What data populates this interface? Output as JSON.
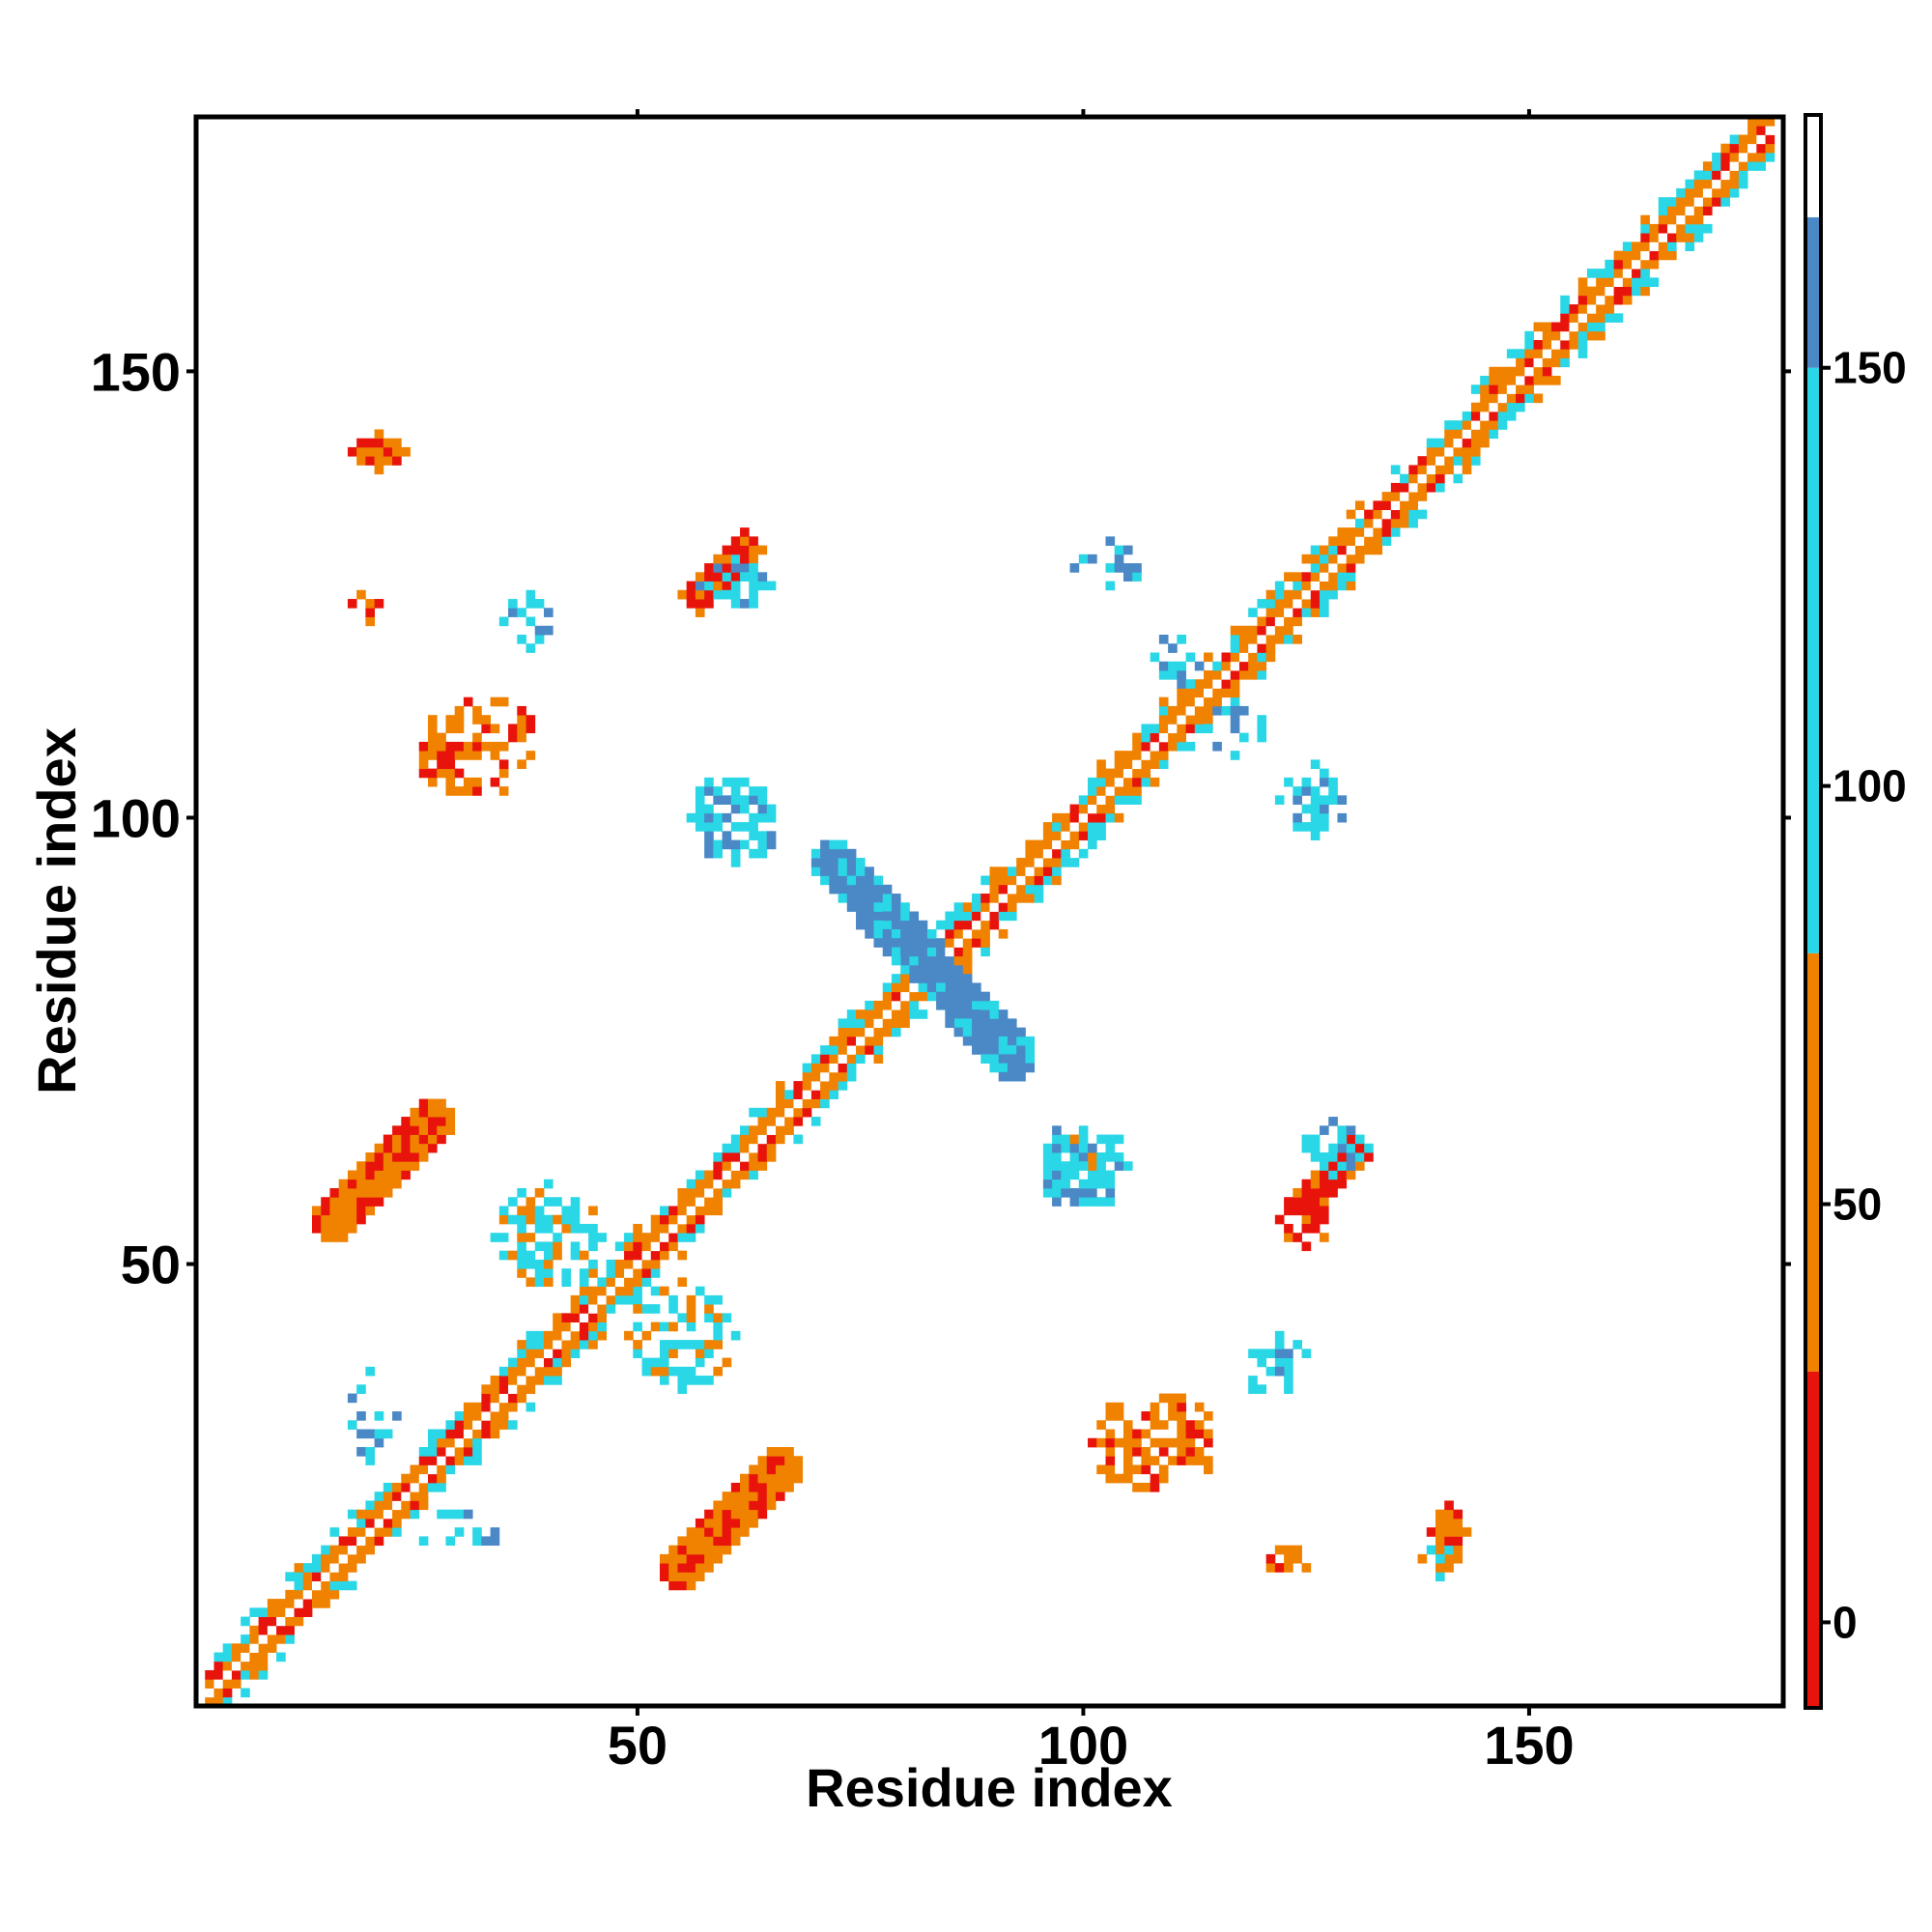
{
  "chart_data": {
    "type": "heatmap",
    "title": "",
    "xlabel": "Residue index",
    "ylabel": "Residue index",
    "xlim": [
      1,
      178
    ],
    "ylim": [
      1,
      178
    ],
    "x_ticks": [
      "50",
      "100",
      "150"
    ],
    "y_ticks": [
      "50",
      "100",
      "150"
    ],
    "grid": false,
    "colorbar": {
      "ticks": [
        "0",
        "50",
        "100",
        "150"
      ],
      "range": [
        -10,
        180
      ],
      "bands": [
        {
          "from": -10,
          "to": 30,
          "color": "#e8140c"
        },
        {
          "from": 30,
          "to": 80,
          "color": "#f08200"
        },
        {
          "from": 80,
          "to": 150,
          "color": "#2ad7e6"
        },
        {
          "from": 150,
          "to": 168,
          "color": "#4a88c6"
        },
        {
          "from": 168,
          "to": 180,
          "color": "#ffffff"
        }
      ]
    },
    "colors": {
      "red": "#e8140c",
      "orange": "#f08200",
      "cyan": "#2ad7e6",
      "blue": "#4a88c6"
    },
    "diagonal": {
      "start": 2,
      "end": 177
    },
    "regions": [
      {
        "kind": "strip",
        "from": [
          16,
          55
        ],
        "to": [
          27,
          66
        ],
        "width": 2.5,
        "color": "orange",
        "mix": "red"
      },
      {
        "kind": "strip",
        "from": [
          55,
          16
        ],
        "to": [
          66,
          27
        ],
        "width": 2.5,
        "color": "orange",
        "mix": "red"
      },
      {
        "kind": "strip",
        "from": [
          57,
          125
        ],
        "to": [
          62,
          130
        ],
        "width": 2.2,
        "color": "red",
        "mix": "orange"
      },
      {
        "kind": "strip",
        "from": [
          125,
          57
        ],
        "to": [
          130,
          62
        ],
        "width": 2.2,
        "color": "red",
        "mix": "orange"
      },
      {
        "kind": "strip",
        "from": [
          72,
          95
        ],
        "to": [
          92,
          73
        ],
        "width": 2.6,
        "color": "blue",
        "mix": "cyan"
      },
      {
        "kind": "blob",
        "center": [
          21,
          141
        ],
        "size": [
          3,
          2
        ],
        "color": "orange",
        "mix": "red"
      },
      {
        "kind": "blob",
        "center": [
          141,
          20
        ],
        "size": [
          2,
          3
        ],
        "color": "orange",
        "mix": "red"
      },
      {
        "kind": "blob",
        "center": [
          32,
          108
        ],
        "size": [
          7,
          6
        ],
        "color": "orange",
        "mix": "red",
        "sparse": 0.45
      },
      {
        "kind": "blob",
        "center": [
          108,
          30
        ],
        "size": [
          7,
          6
        ],
        "color": "orange",
        "mix": "red",
        "sparse": 0.45
      },
      {
        "kind": "blob",
        "center": [
          61,
          100
        ],
        "size": [
          5,
          5
        ],
        "color": "cyan",
        "mix": "blue",
        "sparse": 0.35
      },
      {
        "kind": "blob",
        "center": [
          100,
          61
        ],
        "size": [
          5,
          5
        ],
        "color": "cyan",
        "mix": "blue",
        "sparse": 0.35
      },
      {
        "kind": "blob",
        "center": [
          40,
          53
        ],
        "size": [
          6,
          6
        ],
        "color": "cyan",
        "mix": "orange",
        "sparse": 0.45
      },
      {
        "kind": "blob",
        "center": [
          55,
          42
        ],
        "size": [
          6,
          6
        ],
        "color": "cyan",
        "mix": "orange",
        "sparse": 0.45
      },
      {
        "kind": "blob",
        "center": [
          61,
          126
        ],
        "size": [
          4,
          3
        ],
        "color": "cyan",
        "mix": "blue",
        "sparse": 0.5
      },
      {
        "kind": "blob",
        "center": [
          128,
          63
        ],
        "size": [
          4,
          3
        ],
        "color": "cyan",
        "mix": "blue",
        "sparse": 0.5
      },
      {
        "kind": "blob",
        "center": [
          103,
          128
        ],
        "size": [
          4,
          3
        ],
        "color": "blue",
        "mix": "cyan",
        "sparse": 0.5
      },
      {
        "kind": "blob",
        "center": [
          126,
          102
        ],
        "size": [
          4,
          4
        ],
        "color": "cyan",
        "mix": "blue",
        "sparse": 0.45
      },
      {
        "kind": "blob",
        "center": [
          38,
          122
        ],
        "size": [
          3,
          3
        ],
        "color": "cyan",
        "mix": "blue",
        "sparse": 0.5
      },
      {
        "kind": "blob",
        "center": [
          121,
          38
        ],
        "size": [
          3,
          3
        ],
        "color": "cyan",
        "mix": "blue",
        "sparse": 0.5
      },
      {
        "kind": "blob",
        "center": [
          100,
          62
        ],
        "size": [
          4,
          3
        ],
        "color": "cyan",
        "mix": "orange",
        "sparse": 0.5
      },
      {
        "kind": "blob",
        "center": [
          125,
          55
        ],
        "size": [
          3,
          3
        ],
        "color": "red",
        "mix": "orange",
        "sparse": 0.4
      },
      {
        "kind": "blob",
        "center": [
          140,
          17
        ],
        "size": [
          2,
          2
        ],
        "color": "orange",
        "mix": "cyan",
        "sparse": 0.3
      },
      {
        "kind": "blob",
        "center": [
          123,
          17
        ],
        "size": [
          3,
          2
        ],
        "color": "orange",
        "mix": "red",
        "sparse": 0.5
      },
      {
        "kind": "blob",
        "center": [
          20,
          124
        ],
        "size": [
          2,
          2
        ],
        "color": "orange",
        "mix": "red",
        "sparse": 0.5
      },
      {
        "kind": "blob",
        "center": [
          30,
          20
        ],
        "size": [
          5,
          3
        ],
        "color": "cyan",
        "mix": "blue",
        "sparse": 0.7
      },
      {
        "kind": "blob",
        "center": [
          20,
          33
        ],
        "size": [
          3,
          5
        ],
        "color": "cyan",
        "mix": "blue",
        "sparse": 0.7
      },
      {
        "kind": "blob",
        "center": [
          122,
          40
        ],
        "size": [
          3,
          2
        ],
        "color": "cyan",
        "mix": "blue",
        "sparse": 0.5
      },
      {
        "kind": "blob",
        "center": [
          117,
          110
        ],
        "size": [
          4,
          3
        ],
        "color": "cyan",
        "mix": "blue",
        "sparse": 0.65
      },
      {
        "kind": "blob",
        "center": [
          110,
          117
        ],
        "size": [
          3,
          4
        ],
        "color": "cyan",
        "mix": "blue",
        "sparse": 0.65
      }
    ]
  }
}
